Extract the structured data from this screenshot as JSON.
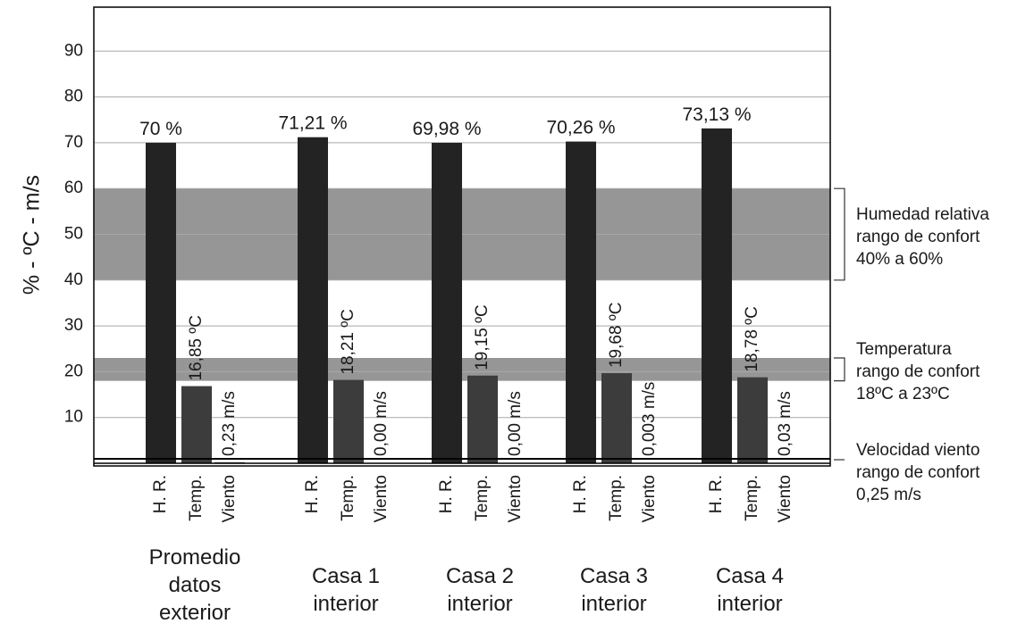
{
  "chart_data": {
    "type": "bar",
    "ylabel": "% - ºC - m/s",
    "ylim": [
      0,
      100
    ],
    "yticks": [
      "10",
      "20",
      "30",
      "40",
      "50",
      "60",
      "70",
      "80",
      "90"
    ],
    "grid": true,
    "bar_labels": [
      "H. R.",
      "Temp.",
      "Viento"
    ],
    "groups": [
      {
        "label_lines": [
          "Promedio",
          "datos",
          "exterior"
        ],
        "hr": {
          "value": 70,
          "label": "70 %"
        },
        "temp": {
          "value": 16.85,
          "label": "16,85 ºC"
        },
        "wind": {
          "value": 0.23,
          "label": "0,23 m/s"
        }
      },
      {
        "label_lines": [
          "Casa 1",
          "interior"
        ],
        "hr": {
          "value": 71.21,
          "label": "71,21 %"
        },
        "temp": {
          "value": 18.21,
          "label": "18,21 ºC"
        },
        "wind": {
          "value": 0.0,
          "label": "0,00 m/s"
        }
      },
      {
        "label_lines": [
          "Casa 2",
          "interior"
        ],
        "hr": {
          "value": 69.98,
          "label": "69,98 %"
        },
        "temp": {
          "value": 19.15,
          "label": "19,15 ºC"
        },
        "wind": {
          "value": 0.0,
          "label": "0,00 m/s"
        }
      },
      {
        "label_lines": [
          "Casa 3",
          "interior"
        ],
        "hr": {
          "value": 70.26,
          "label": "70,26 %"
        },
        "temp": {
          "value": 19.68,
          "label": "19,68 ºC"
        },
        "wind": {
          "value": 0.003,
          "label": "0,003 m/s"
        }
      },
      {
        "label_lines": [
          "Casa 4",
          "interior"
        ],
        "hr": {
          "value": 73.13,
          "label": "73,13 %"
        },
        "temp": {
          "value": 18.78,
          "label": "18,78 ºC"
        },
        "wind": {
          "value": 0.03,
          "label": "0,03 m/s"
        }
      }
    ],
    "comfort_bands": [
      {
        "from": 40,
        "to": 60,
        "label_lines": [
          "Humedad relativa",
          "rango de confort",
          "40% a 60%"
        ]
      },
      {
        "from": 18,
        "to": 23,
        "label_lines": [
          "Temperatura",
          "rango de confort",
          "18ºC a 23ºC"
        ]
      }
    ],
    "comfort_line": {
      "value": 0.25,
      "label_lines": [
        "Velocidad viento",
        "rango de confort",
        "0,25 m/s"
      ]
    },
    "colors": {
      "hr_bar": "#232323",
      "temp_bar": "#3c3c3c",
      "band": "#969696",
      "grid": "#a8a8a8",
      "axis": "#000000"
    }
  }
}
